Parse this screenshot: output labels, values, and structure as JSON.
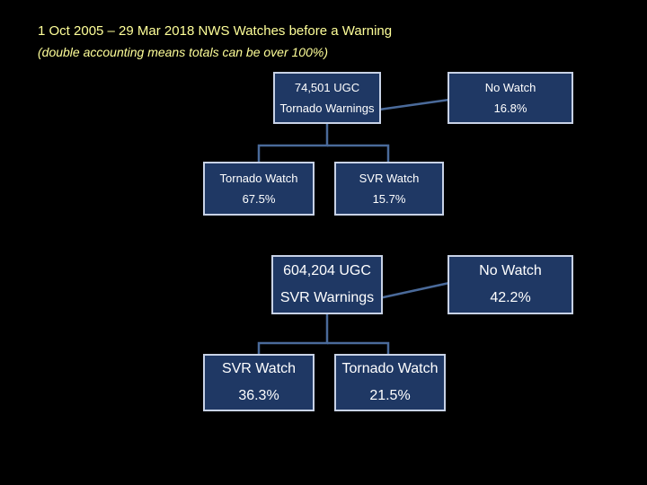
{
  "title": "1 Oct 2005 – 29 Mar 2018 NWS Watches before a Warning",
  "subtitle": "(double accounting means totals can be over 100%)",
  "colors": {
    "box_fill": "#1f3864",
    "box_border": "#c8d2e6",
    "title_text": "#ffff99",
    "background": "#000000"
  },
  "tornado_section": {
    "root": {
      "line1": "74,501 UGC",
      "line2": "Tornado Warnings"
    },
    "no_watch": {
      "label": "No Watch",
      "value": "16.8%"
    },
    "tornado_watch": {
      "label": "Tornado Watch",
      "value": "67.5%"
    },
    "svr_watch": {
      "label": "SVR Watch",
      "value": "15.7%"
    }
  },
  "svr_section": {
    "root": {
      "line1": "604,204 UGC",
      "line2": "SVR Warnings"
    },
    "no_watch": {
      "label": "No Watch",
      "value": "42.2%"
    },
    "svr_watch": {
      "label": "SVR Watch",
      "value": "36.3%"
    },
    "tornado_watch": {
      "label": "Tornado Watch",
      "value": "21.5%"
    }
  }
}
